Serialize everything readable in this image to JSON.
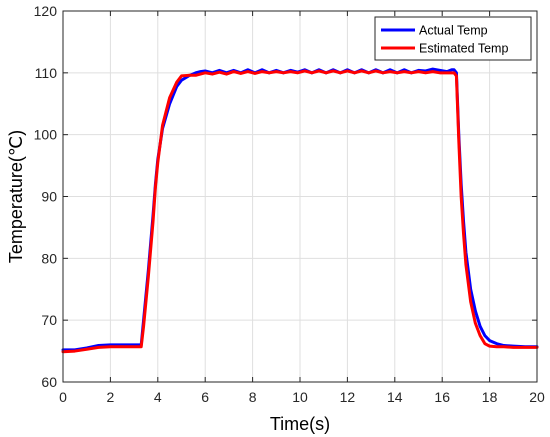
{
  "chart_data": {
    "type": "line",
    "title": "",
    "xlabel": "Time(s)",
    "ylabel": "Temperature(℃)",
    "xlim": [
      0,
      20
    ],
    "ylim": [
      60,
      120
    ],
    "xticks": [
      "0",
      "2",
      "4",
      "6",
      "8",
      "10",
      "12",
      "14",
      "16",
      "18",
      "20"
    ],
    "yticks": [
      "60",
      "70",
      "80",
      "90",
      "100",
      "110",
      "120"
    ],
    "grid": true,
    "legend_position": "top-right",
    "series": [
      {
        "name": "Actual Temp",
        "color": "#0000ff",
        "x": [
          0,
          0.5,
          1.0,
          1.5,
          2.0,
          2.5,
          3.0,
          3.3,
          3.4,
          3.6,
          3.8,
          3.9,
          4.0,
          4.2,
          4.5,
          4.8,
          5.0,
          5.3,
          5.6,
          5.8,
          6.0,
          6.3,
          6.6,
          6.9,
          7.2,
          7.5,
          7.8,
          8.1,
          8.4,
          8.7,
          9.0,
          9.3,
          9.6,
          9.9,
          10.2,
          10.5,
          10.8,
          11.1,
          11.4,
          11.7,
          12.0,
          12.3,
          12.6,
          12.9,
          13.2,
          13.5,
          13.8,
          14.1,
          14.4,
          14.7,
          15.0,
          15.3,
          15.6,
          15.9,
          16.2,
          16.4,
          16.5,
          16.6,
          16.7,
          16.8,
          16.9,
          17.0,
          17.2,
          17.4,
          17.6,
          17.8,
          18.0,
          18.3,
          18.6,
          19.0,
          19.5,
          20.0
        ],
        "values": [
          65.2,
          65.2,
          65.5,
          65.9,
          66.0,
          66.0,
          66.0,
          66.0,
          70.0,
          78.0,
          87.0,
          92.0,
          96.0,
          101.0,
          105.0,
          107.8,
          108.8,
          109.5,
          110.0,
          110.2,
          110.3,
          110.0,
          110.4,
          110.0,
          110.4,
          110.0,
          110.5,
          110.0,
          110.5,
          110.0,
          110.4,
          110.0,
          110.4,
          110.1,
          110.5,
          110.0,
          110.5,
          110.0,
          110.5,
          110.0,
          110.5,
          110.0,
          110.5,
          110.0,
          110.5,
          110.0,
          110.5,
          110.0,
          110.5,
          110.0,
          110.4,
          110.3,
          110.6,
          110.4,
          110.2,
          110.5,
          110.5,
          110.0,
          100.0,
          92.0,
          86.0,
          81.0,
          75.0,
          71.5,
          69.0,
          67.5,
          66.7,
          66.2,
          65.9,
          65.8,
          65.7,
          65.7
        ]
      },
      {
        "name": "Estimated Temp",
        "color": "#ff0000",
        "x": [
          0,
          0.5,
          1.0,
          1.5,
          2.0,
          2.5,
          3.0,
          3.3,
          3.4,
          3.6,
          3.8,
          3.9,
          4.0,
          4.2,
          4.5,
          4.8,
          5.0,
          5.3,
          5.6,
          5.8,
          6.0,
          6.3,
          6.6,
          6.9,
          7.2,
          7.5,
          7.8,
          8.1,
          8.4,
          8.7,
          9.0,
          9.3,
          9.6,
          9.9,
          10.2,
          10.5,
          10.8,
          11.1,
          11.4,
          11.7,
          12.0,
          12.3,
          12.6,
          12.9,
          13.2,
          13.5,
          13.8,
          14.1,
          14.4,
          14.7,
          15.0,
          15.3,
          15.6,
          15.9,
          16.2,
          16.4,
          16.5,
          16.6,
          16.7,
          16.8,
          16.9,
          17.0,
          17.2,
          17.4,
          17.6,
          17.8,
          18.0,
          18.3,
          18.6,
          19.0,
          19.5,
          20.0
        ],
        "values": [
          64.9,
          65.0,
          65.3,
          65.6,
          65.7,
          65.7,
          65.7,
          65.7,
          69.0,
          77.0,
          86.0,
          91.5,
          95.5,
          101.5,
          106.0,
          108.5,
          109.5,
          109.6,
          109.6,
          109.8,
          110.0,
          109.8,
          110.1,
          109.8,
          110.2,
          109.9,
          110.2,
          109.9,
          110.2,
          110.0,
          110.2,
          110.0,
          110.2,
          110.0,
          110.3,
          110.0,
          110.3,
          110.0,
          110.3,
          110.0,
          110.3,
          110.0,
          110.3,
          110.0,
          110.3,
          110.0,
          110.2,
          110.0,
          110.2,
          110.0,
          110.2,
          110.0,
          110.2,
          110.0,
          110.0,
          110.0,
          110.0,
          109.5,
          99.0,
          90.0,
          84.0,
          79.0,
          73.0,
          69.5,
          67.5,
          66.2,
          65.8,
          65.7,
          65.7,
          65.6,
          65.6,
          65.6
        ]
      }
    ]
  }
}
